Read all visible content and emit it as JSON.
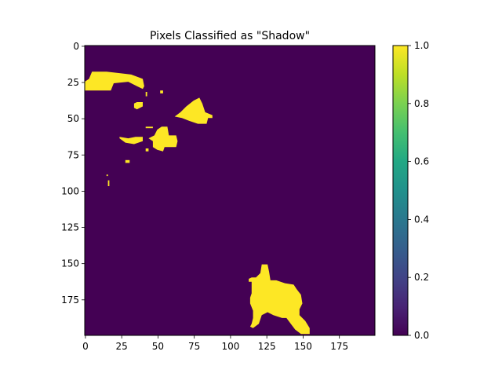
{
  "chart_data": {
    "type": "heatmap",
    "title": "Pixels Classified as \"Shadow\"",
    "xlabel": "",
    "ylabel": "",
    "grid_size": [
      200,
      200
    ],
    "xlim": [
      0,
      200
    ],
    "ylim": [
      200,
      0
    ],
    "x_ticks": [
      0,
      25,
      50,
      75,
      100,
      125,
      150,
      175
    ],
    "y_ticks": [
      0,
      25,
      50,
      75,
      100,
      125,
      150,
      175
    ],
    "x_tick_labels": [
      "0",
      "25",
      "50",
      "75",
      "100",
      "125",
      "150",
      "175"
    ],
    "y_tick_labels": [
      "0",
      "25",
      "50",
      "75",
      "100",
      "125",
      "150",
      "175"
    ],
    "colormap": "viridis",
    "vmin": 0.0,
    "vmax": 1.0,
    "colorbar_ticks": [
      0.0,
      0.2,
      0.4,
      0.6,
      0.8,
      1.0
    ],
    "colorbar_tick_labels": [
      "0.0",
      "0.2",
      "0.4",
      "0.6",
      "0.8",
      "1.0"
    ],
    "background_value": 0,
    "background_color": "#440154",
    "highlight_value": 1,
    "highlight_color": "#fde725",
    "shadow_regions": [
      {
        "name": "top-left-streak",
        "points": [
          [
            0,
            27
          ],
          [
            0,
            31
          ],
          [
            18,
            31
          ],
          [
            20,
            26
          ],
          [
            30,
            25
          ],
          [
            36,
            28
          ],
          [
            40,
            30
          ],
          [
            41,
            28
          ],
          [
            40,
            23
          ],
          [
            32,
            20
          ],
          [
            24,
            19
          ],
          [
            15,
            18
          ],
          [
            5,
            18
          ],
          [
            3,
            23
          ],
          [
            0,
            25
          ]
        ]
      },
      {
        "name": "small-blob-a",
        "points": [
          [
            34,
            40
          ],
          [
            34,
            43
          ],
          [
            36,
            44
          ],
          [
            40,
            42
          ],
          [
            40,
            39
          ],
          [
            36,
            39
          ]
        ]
      },
      {
        "name": "small-dot-b",
        "points": [
          [
            42,
            32
          ],
          [
            42,
            35
          ],
          [
            43,
            35
          ],
          [
            43,
            32
          ]
        ]
      },
      {
        "name": "small-dot-c",
        "points": [
          [
            52,
            31
          ],
          [
            52,
            33
          ],
          [
            54,
            33
          ],
          [
            54,
            31
          ]
        ]
      },
      {
        "name": "top-triangle",
        "points": [
          [
            62,
            49
          ],
          [
            67,
            50
          ],
          [
            72,
            52
          ],
          [
            78,
            54
          ],
          [
            84,
            54
          ],
          [
            85,
            50
          ],
          [
            88,
            50
          ],
          [
            88,
            48
          ],
          [
            83,
            46
          ],
          [
            81,
            40
          ],
          [
            79,
            36
          ],
          [
            75,
            38
          ],
          [
            70,
            42
          ],
          [
            66,
            46
          ]
        ]
      },
      {
        "name": "small-dot-d",
        "points": [
          [
            42,
            56
          ],
          [
            42,
            57
          ],
          [
            47,
            57
          ],
          [
            47,
            56
          ]
        ]
      },
      {
        "name": "mid-blob",
        "points": [
          [
            44,
            64
          ],
          [
            47,
            66
          ],
          [
            47,
            70
          ],
          [
            50,
            72
          ],
          [
            54,
            73
          ],
          [
            55,
            70
          ],
          [
            60,
            70
          ],
          [
            63,
            70
          ],
          [
            64,
            66
          ],
          [
            63,
            62
          ],
          [
            58,
            62
          ],
          [
            57,
            56
          ],
          [
            53,
            56
          ],
          [
            50,
            58
          ],
          [
            48,
            62
          ]
        ]
      },
      {
        "name": "left-streak",
        "points": [
          [
            24,
            63
          ],
          [
            24,
            64
          ],
          [
            28,
            67
          ],
          [
            34,
            68
          ],
          [
            40,
            66
          ],
          [
            40,
            63
          ],
          [
            35,
            63
          ],
          [
            30,
            64
          ]
        ]
      },
      {
        "name": "small-dot-e",
        "points": [
          [
            28,
            79
          ],
          [
            28,
            81
          ],
          [
            31,
            81
          ],
          [
            31,
            79
          ]
        ]
      },
      {
        "name": "small-dot-f",
        "points": [
          [
            42,
            71
          ],
          [
            42,
            73
          ],
          [
            44,
            73
          ],
          [
            44,
            71
          ]
        ]
      },
      {
        "name": "tiny-line-g",
        "points": [
          [
            15,
            89
          ],
          [
            15,
            90
          ],
          [
            16,
            90
          ],
          [
            16,
            89
          ]
        ]
      },
      {
        "name": "tiny-line-h",
        "points": [
          [
            16,
            93
          ],
          [
            16,
            97
          ],
          [
            17,
            97
          ],
          [
            17,
            93
          ]
        ]
      },
      {
        "name": "bottom-blob",
        "points": [
          [
            113,
            163
          ],
          [
            115,
            163
          ],
          [
            115,
            166
          ],
          [
            115,
            171
          ],
          [
            114,
            174
          ],
          [
            114,
            178
          ],
          [
            116,
            183
          ],
          [
            116,
            188
          ],
          [
            115,
            192
          ],
          [
            114,
            194
          ],
          [
            116,
            195
          ],
          [
            120,
            192
          ],
          [
            122,
            186
          ],
          [
            126,
            184
          ],
          [
            130,
            186
          ],
          [
            136,
            188
          ],
          [
            139,
            188
          ],
          [
            142,
            192
          ],
          [
            145,
            196
          ],
          [
            149,
            199
          ],
          [
            155,
            199
          ],
          [
            155,
            195
          ],
          [
            152,
            190
          ],
          [
            148,
            186
          ],
          [
            148,
            182
          ],
          [
            150,
            178
          ],
          [
            149,
            172
          ],
          [
            146,
            168
          ],
          [
            144,
            165
          ],
          [
            138,
            164
          ],
          [
            132,
            162
          ],
          [
            128,
            162
          ],
          [
            127,
            156
          ],
          [
            126,
            151
          ],
          [
            122,
            151
          ],
          [
            121,
            157
          ],
          [
            118,
            160
          ],
          [
            115,
            160
          ],
          [
            113,
            161
          ]
        ]
      }
    ]
  }
}
